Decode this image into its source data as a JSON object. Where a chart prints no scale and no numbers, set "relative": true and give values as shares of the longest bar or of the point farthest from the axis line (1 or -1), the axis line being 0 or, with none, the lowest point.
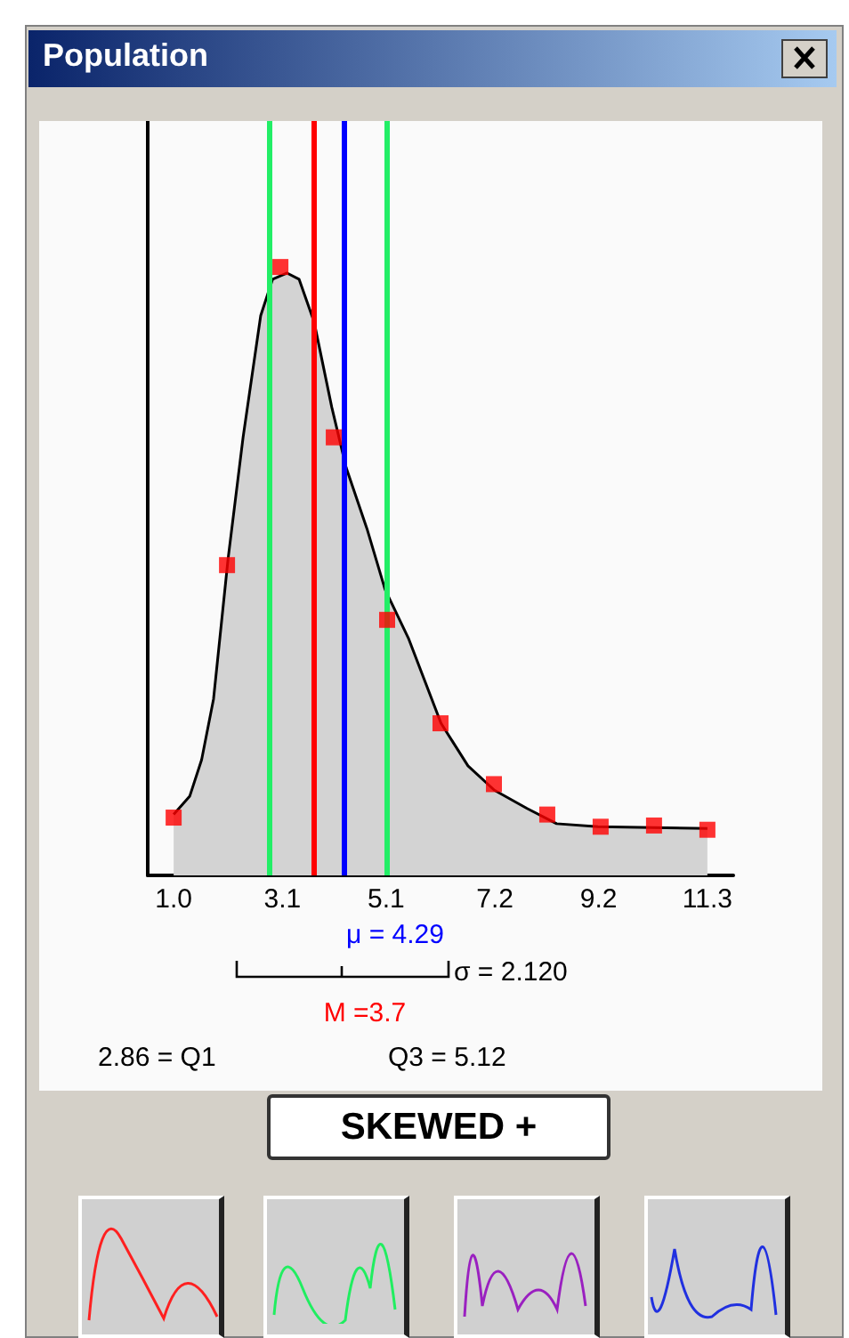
{
  "chart_data": {
    "type": "area",
    "title": "Population",
    "relative": true,
    "xlim": [
      0.5,
      11.8
    ],
    "xticks": [
      {
        "value": 1.0,
        "label": "1.0"
      },
      {
        "value": 3.1,
        "label": "3.1"
      },
      {
        "value": 5.1,
        "label": "5.1"
      },
      {
        "value": 7.2,
        "label": "7.2"
      },
      {
        "value": 9.2,
        "label": "9.2"
      },
      {
        "value": 11.3,
        "label": "11.3"
      }
    ],
    "series": [
      {
        "color": "#000000",
        "x": [
          1.0,
          1.31,
          1.54,
          1.77,
          2.05,
          2.34,
          2.68,
          2.91,
          3.19,
          3.42,
          3.71,
          4.05,
          4.33,
          4.73,
          5.08,
          5.53,
          6.16,
          6.68,
          7.19,
          7.82,
          8.39,
          9.19,
          11.3
        ],
        "values": [
          0.1,
          0.13,
          0.19,
          0.29,
          0.52,
          0.72,
          0.92,
          0.98,
          0.99,
          0.98,
          0.91,
          0.77,
          0.67,
          0.57,
          0.47,
          0.39,
          0.25,
          0.18,
          0.14,
          0.11,
          0.085,
          0.08,
          0.077
        ]
      },
      {
        "type": "scatter",
        "color": "#ff0000",
        "marker": "square",
        "x": [
          1.0,
          2.03,
          3.06,
          4.09,
          5.12,
          6.15,
          7.18,
          8.21,
          9.24,
          10.27,
          11.3
        ],
        "values": [
          0.095,
          0.51,
          1,
          0.72,
          0.42,
          0.25,
          0.15,
          0.1,
          0.08,
          0.082,
          0.075
        ]
      }
    ],
    "ref_lines": [
      {
        "axis": "x",
        "value": 2.86,
        "color": "#22ee66"
      },
      {
        "axis": "x",
        "value": 3.7,
        "label": "M =3.7",
        "color": "#ff0000"
      },
      {
        "axis": "x",
        "value": 4.29,
        "label": "μ = 4.29",
        "color": "#0000ff"
      },
      {
        "axis": "x",
        "value": 5.12,
        "color": "#22ee66"
      }
    ],
    "annotations": [
      "σ = 2.120",
      "SKEWED +",
      "2.86 = Q1",
      "Q3 = 5.12"
    ]
  }
}
